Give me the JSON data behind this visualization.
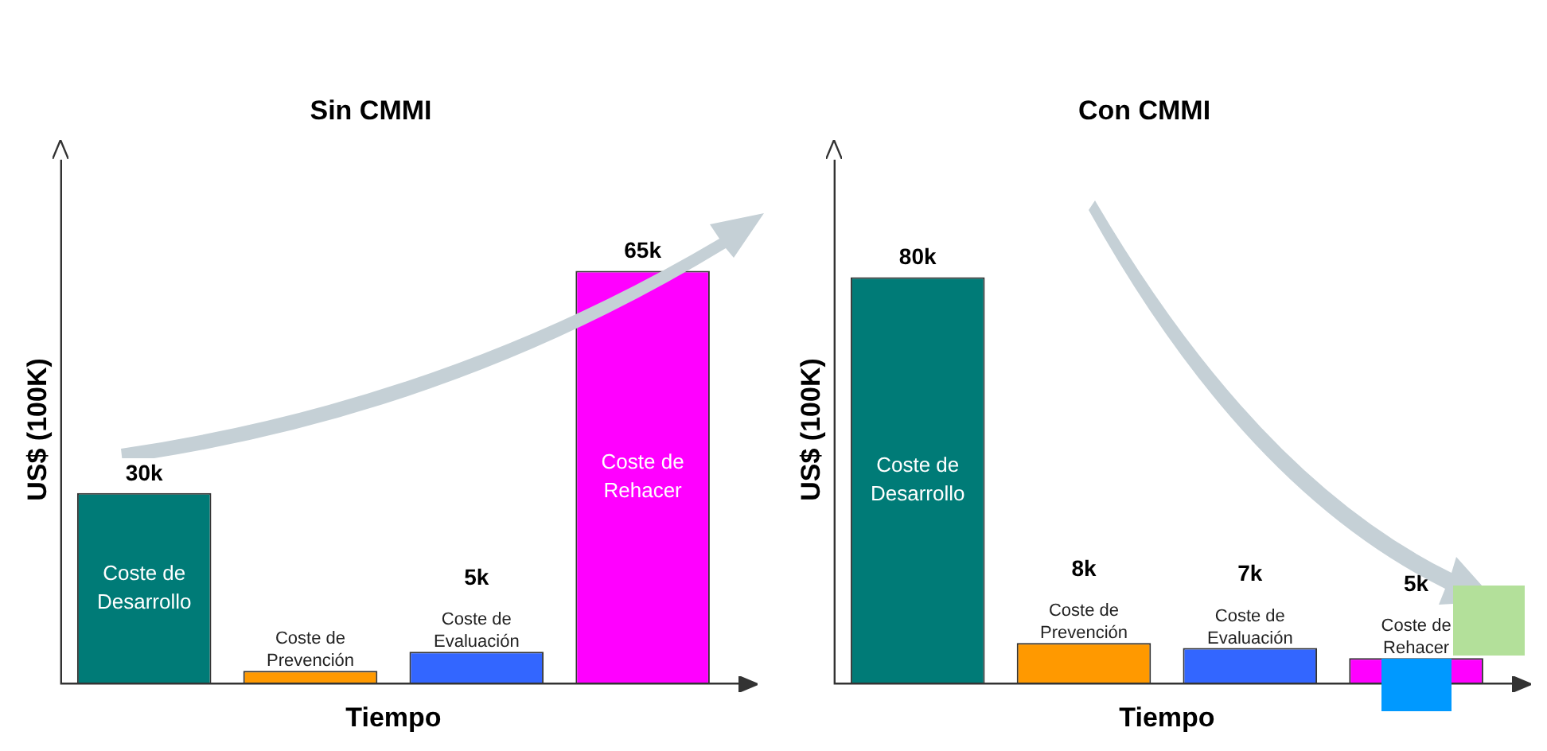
{
  "chart_data": [
    {
      "type": "bar",
      "title": "Sin CMMI",
      "xlabel": "Tiempo",
      "ylabel": "US$ (100K)",
      "categories": [
        "Coste de Desarrollo",
        "Coste de Prevención",
        "Coste de Evaluación",
        "Coste de Rehacer"
      ],
      "values": [
        30,
        2,
        5,
        65
      ],
      "colors": [
        "#007b77",
        "#ff9900",
        "#3366ff",
        "#ff00ff"
      ],
      "value_labels": [
        "30k",
        null,
        "5k",
        "65k"
      ]
    },
    {
      "type": "bar",
      "title": "Con CMMI",
      "xlabel": "Tiempo",
      "ylabel": "US$ (100K)",
      "categories": [
        "Coste de Desarrollo",
        "Coste de Prevención",
        "Coste de Evaluación",
        "Coste de Rehacer"
      ],
      "values": [
        80,
        8,
        7,
        5
      ],
      "colors": [
        "#007b77",
        "#ff9900",
        "#3366ff",
        "#ff00ff"
      ],
      "value_labels": [
        "80k",
        "8k",
        "7k",
        "5k"
      ]
    }
  ]
}
